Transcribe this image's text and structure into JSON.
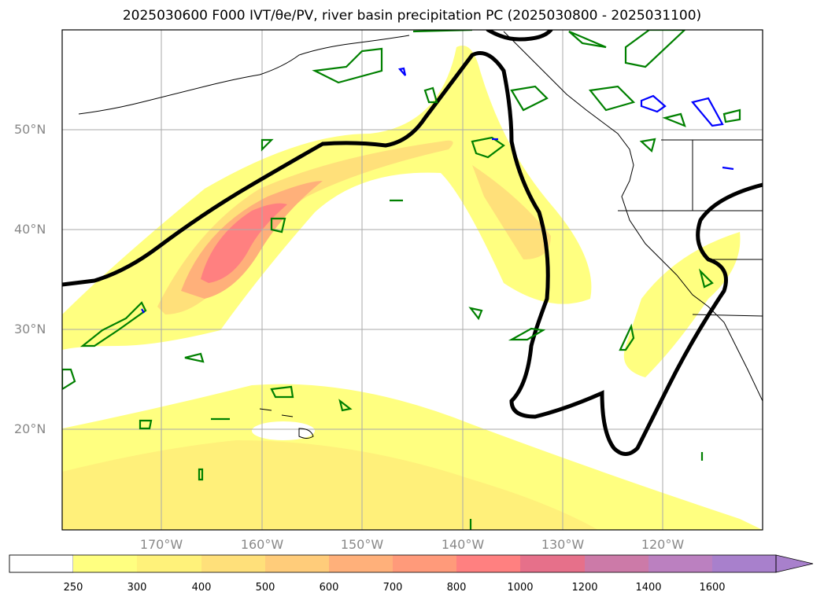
{
  "title": "2025030600 F000 IVT/θe/PV, river basin precipitation PC (2025030800 - 2025031100)",
  "axes": {
    "lat_labels": [
      "50°N",
      "40°N",
      "30°N",
      "20°N"
    ],
    "lon_labels": [
      "170°W",
      "160°W",
      "150°W",
      "140°W",
      "130°W",
      "120°W"
    ]
  },
  "colorbar": {
    "labels": [
      "250",
      "300",
      "400",
      "500",
      "600",
      "700",
      "800",
      "1000",
      "1200",
      "1400",
      "1600"
    ],
    "colors": [
      "#ffffff",
      "#ffff80",
      "#fff27a",
      "#ffe07a",
      "#ffcc7a",
      "#ffb07a",
      "#ff9a7a",
      "#ff8080",
      "#e6708a",
      "#cc7aa8",
      "#bb80c0",
      "#a880cc"
    ],
    "extend": "max"
  },
  "colors": {
    "frame": "#000000",
    "grid": "#aaaaaa",
    "coastline": "#000000",
    "theta_contour": "#000000",
    "pv_contour": "#008000",
    "precip_contour": "#0000ff"
  }
}
